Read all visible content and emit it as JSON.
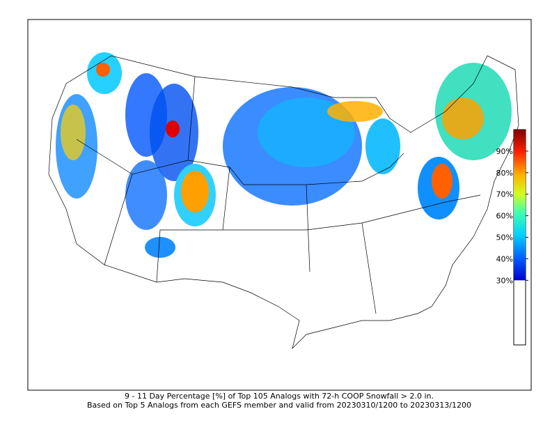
{
  "caption": [
    "9 - 11 Day Percentage [%] of Top 105 Analogs with 72-h COOP Snowfall > 2.0 in.",
    "Based on Top 5 Analogs from each GEFS member and valid from 20230310/1200 to 20230313/1200"
  ],
  "colorbar": {
    "range": [
      0,
      100
    ],
    "threshold": 30,
    "ticks": [
      {
        "value": 30,
        "label": "30%"
      },
      {
        "value": 40,
        "label": "40%"
      },
      {
        "value": 50,
        "label": "50%"
      },
      {
        "value": 60,
        "label": "60%"
      },
      {
        "value": 70,
        "label": "70%"
      },
      {
        "value": 80,
        "label": "80%"
      },
      {
        "value": 90,
        "label": "90%"
      }
    ]
  }
}
